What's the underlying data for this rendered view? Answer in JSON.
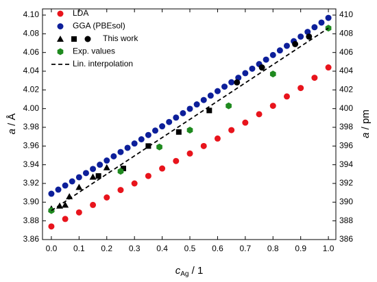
{
  "chart_data": {
    "type": "scatter",
    "x_label": {
      "symbol": "c",
      "subscript": "Ag",
      "unit": " / 1"
    },
    "y_label": {
      "symbol": "a",
      "unit": " / Å"
    },
    "y2_label": {
      "symbol": "a",
      "unit": " / pm"
    },
    "xlim": [
      -0.032,
      1.027
    ],
    "ylim": [
      3.86,
      4.1066
    ],
    "y2lim": [
      386,
      410.66
    ],
    "xticks": [
      {
        "value": 0,
        "label": "0.0"
      },
      {
        "value": 0.1,
        "label": "0.1"
      },
      {
        "value": 0.2,
        "label": "0.2"
      },
      {
        "value": 0.3,
        "label": "0.3"
      },
      {
        "value": 0.4,
        "label": "0.4"
      },
      {
        "value": 0.5,
        "label": "0.5"
      },
      {
        "value": 0.6,
        "label": "0.6"
      },
      {
        "value": 0.7,
        "label": "0.7"
      },
      {
        "value": 0.8,
        "label": "0.8"
      },
      {
        "value": 0.9,
        "label": "0.9"
      },
      {
        "value": 1,
        "label": "1.0"
      }
    ],
    "yticks": [
      {
        "value": 3.86,
        "label": "3.86"
      },
      {
        "value": 3.88,
        "label": "3.88"
      },
      {
        "value": 3.9,
        "label": "3.90"
      },
      {
        "value": 3.92,
        "label": "3.92"
      },
      {
        "value": 3.94,
        "label": "3.94"
      },
      {
        "value": 3.96,
        "label": "3.96"
      },
      {
        "value": 3.98,
        "label": "3.98"
      },
      {
        "value": 4,
        "label": "4.00"
      },
      {
        "value": 4.02,
        "label": "4.02"
      },
      {
        "value": 4.04,
        "label": "4.04"
      },
      {
        "value": 4.06,
        "label": "4.06"
      },
      {
        "value": 4.08,
        "label": "4.08"
      },
      {
        "value": 4.1,
        "label": "4.10"
      }
    ],
    "y2ticks": [
      386,
      388,
      390,
      392,
      394,
      396,
      398,
      400,
      402,
      404,
      406,
      408,
      410
    ],
    "series": [
      {
        "name": "LDA",
        "color": "#e8141c",
        "marker": "circle",
        "x": [
          0,
          0.05,
          0.1,
          0.15,
          0.2,
          0.25,
          0.3,
          0.35,
          0.4,
          0.45,
          0.5,
          0.55,
          0.6,
          0.65,
          0.7,
          0.75,
          0.8,
          0.85,
          0.9,
          0.95,
          1
        ],
        "values": [
          3.874,
          3.882,
          3.889,
          3.897,
          3.905,
          3.913,
          3.92,
          3.928,
          3.936,
          3.944,
          3.952,
          3.96,
          3.968,
          3.977,
          3.985,
          3.994,
          4.003,
          4.013,
          4.022,
          4.033,
          4.044
        ]
      },
      {
        "name": "GGA (PBEsol)",
        "color": "#0d1f9a",
        "marker": "circle",
        "x": [
          0,
          0.025,
          0.05,
          0.075,
          0.1,
          0.125,
          0.15,
          0.175,
          0.2,
          0.225,
          0.25,
          0.275,
          0.3,
          0.325,
          0.35,
          0.375,
          0.4,
          0.425,
          0.45,
          0.475,
          0.5,
          0.525,
          0.55,
          0.575,
          0.6,
          0.625,
          0.65,
          0.675,
          0.7,
          0.725,
          0.75,
          0.775,
          0.8,
          0.825,
          0.85,
          0.875,
          0.9,
          0.925,
          0.95,
          0.975,
          1
        ],
        "values": [
          3.909,
          3.9134,
          3.9178,
          3.9222,
          3.9266,
          3.9311,
          3.9355,
          3.94,
          3.9445,
          3.949,
          3.9536,
          3.9581,
          3.9627,
          3.9672,
          3.9718,
          3.9765,
          3.9811,
          3.9857,
          3.9904,
          3.9951,
          3.9998,
          4.0045,
          4.0092,
          4.0139,
          4.0187,
          4.0235,
          4.0282,
          4.033,
          4.0379,
          4.0427,
          4.0476,
          4.0524,
          4.0573,
          4.0622,
          4.0671,
          4.0721,
          4.077,
          4.082,
          4.087,
          4.092,
          4.097
        ]
      },
      {
        "name": "This work",
        "color": "#000000",
        "marker": [
          "triangle",
          "triangle",
          "triangle",
          "triangle",
          "triangle",
          "triangle",
          "triangle",
          "square",
          "square",
          "square",
          "square",
          "square",
          "circle",
          "circle",
          "circle",
          "circle"
        ],
        "x": [
          0,
          0.03,
          0.05,
          0.065,
          0.1,
          0.15,
          0.2,
          0.17,
          0.26,
          0.35,
          0.46,
          0.57,
          0.67,
          0.76,
          0.88,
          0.93
        ],
        "values": [
          3.893,
          3.896,
          3.897,
          3.906,
          3.916,
          3.927,
          3.937,
          3.928,
          3.936,
          3.96,
          3.975,
          3.998,
          4.028,
          4.044,
          4.069,
          4.077
        ]
      },
      {
        "name": "Exp. values",
        "color": "#1f8a1f",
        "marker": "hexagon",
        "x": [
          0,
          0.25,
          0.39,
          0.5,
          0.64,
          0.8,
          1
        ],
        "values": [
          3.891,
          3.933,
          3.959,
          3.977,
          4.003,
          4.037,
          4.086
        ]
      },
      {
        "name": "Lin. interpolation",
        "color": "#000000",
        "marker": "dashed-line",
        "x": [
          0,
          1
        ],
        "values": [
          3.891,
          4.086
        ]
      }
    ]
  }
}
